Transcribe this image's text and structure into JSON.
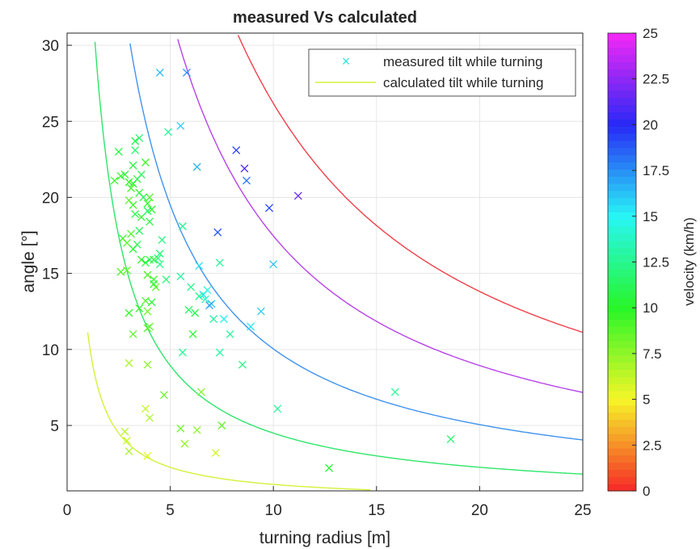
{
  "chart_data": {
    "type": "scatter",
    "title": "measured Vs calculated",
    "xlabel": "turning radius [m]",
    "ylabel": "angle [°]",
    "xlim": [
      0,
      25
    ],
    "ylim": [
      0.7,
      30.8
    ],
    "xticks": [
      "0",
      "5",
      "10",
      "15",
      "20",
      "25"
    ],
    "yticks": [
      "5",
      "10",
      "15",
      "20",
      "25",
      "30"
    ],
    "grid": true,
    "legend": {
      "placement": "top-right",
      "entries": [
        "measured tilt while turning",
        "calculated tilt while turning"
      ]
    },
    "colorbar": {
      "label": "velocity (km/h)",
      "range": [
        0,
        25
      ],
      "ticks": [
        "0",
        "2.5",
        "5",
        "7.5",
        "10",
        "12.5",
        "15",
        "17.5",
        "20",
        "22.5",
        "25"
      ],
      "colormap": "hsv"
    },
    "calculated_curves": [
      {
        "velocity_kmh": 5,
        "color": "#d6f03a",
        "x_range": [
          1.0,
          14.7
        ]
      },
      {
        "velocity_kmh": 10,
        "color": "#2ee66a",
        "x_range": [
          1.35,
          25
        ]
      },
      {
        "velocity_kmh": 15,
        "color": "#3f93ee",
        "x_range": [
          2.85,
          25
        ]
      },
      {
        "velocity_kmh": 20,
        "color": "#b743e8",
        "x_range": [
          5.0,
          25
        ]
      },
      {
        "velocity_kmh": 25,
        "color": "#f0404a",
        "x_range": [
          7.9,
          25
        ]
      }
    ],
    "measured_points": [
      [
        4.5,
        28.2,
        16.5
      ],
      [
        5.8,
        28.2,
        17.5
      ],
      [
        5.5,
        24.7,
        16.0
      ],
      [
        4.9,
        24.3,
        12.8
      ],
      [
        3.5,
        23.9,
        11.8
      ],
      [
        3.3,
        23.7,
        11.0
      ],
      [
        2.5,
        23.0,
        10.5
      ],
      [
        3.3,
        23.1,
        11.6
      ],
      [
        8.2,
        23.1,
        19.5
      ],
      [
        8.6,
        21.9,
        20.8
      ],
      [
        6.3,
        22.0,
        16.5
      ],
      [
        8.7,
        21.1,
        18.2
      ],
      [
        11.2,
        20.1,
        21.5
      ],
      [
        2.3,
        21.1,
        9.5
      ],
      [
        2.6,
        21.4,
        9.8
      ],
      [
        2.8,
        21.5,
        10.2
      ],
      [
        3.0,
        21.0,
        9.6
      ],
      [
        3.1,
        20.6,
        9.2
      ],
      [
        3.2,
        20.9,
        10.0
      ],
      [
        3.4,
        21.2,
        10.8
      ],
      [
        3.6,
        21.5,
        11.2
      ],
      [
        3.2,
        22.1,
        10.6
      ],
      [
        3.8,
        22.3,
        9.5
      ],
      [
        3.0,
        19.8,
        8.8
      ],
      [
        3.2,
        19.5,
        9.4
      ],
      [
        3.5,
        20.3,
        10.4
      ],
      [
        3.7,
        20.0,
        11.0
      ],
      [
        3.9,
        19.6,
        9.9
      ],
      [
        4.0,
        20.0,
        9.2
      ],
      [
        3.3,
        18.9,
        10.8
      ],
      [
        3.6,
        18.7,
        9.8
      ],
      [
        3.9,
        19.1,
        11.4
      ],
      [
        4.1,
        19.2,
        10.0
      ],
      [
        3.5,
        17.8,
        11.2
      ],
      [
        4.0,
        18.4,
        10.6
      ],
      [
        3.1,
        17.6,
        9.0
      ],
      [
        2.7,
        17.3,
        9.6
      ],
      [
        2.9,
        17.0,
        8.8
      ],
      [
        3.2,
        16.6,
        10.2
      ],
      [
        3.4,
        16.9,
        11.0
      ],
      [
        4.6,
        17.2,
        12.2
      ],
      [
        5.6,
        18.1,
        12.6
      ],
      [
        3.6,
        15.9,
        9.8
      ],
      [
        3.8,
        15.7,
        10.6
      ],
      [
        4.0,
        15.9,
        11.2
      ],
      [
        4.2,
        15.9,
        10.4
      ],
      [
        4.4,
        16.0,
        11.6
      ],
      [
        4.5,
        16.3,
        12.0
      ],
      [
        4.5,
        15.6,
        12.4
      ],
      [
        2.6,
        15.1,
        9.2
      ],
      [
        2.9,
        15.2,
        8.6
      ],
      [
        3.9,
        14.9,
        9.2
      ],
      [
        4.2,
        14.6,
        9.5
      ],
      [
        4.2,
        14.3,
        10.2
      ],
      [
        4.3,
        14.1,
        8.8
      ],
      [
        4.8,
        14.6,
        11.8
      ],
      [
        5.5,
        14.8,
        13.0
      ],
      [
        6.0,
        14.1,
        12.4
      ],
      [
        6.4,
        15.5,
        15.5
      ],
      [
        7.4,
        15.7,
        12.8
      ],
      [
        7.3,
        17.7,
        18.8
      ],
      [
        10.0,
        15.6,
        16.2
      ],
      [
        9.8,
        19.3,
        19.2
      ],
      [
        6.6,
        13.6,
        15.8
      ],
      [
        6.8,
        13.9,
        14.5
      ],
      [
        7.0,
        13.0,
        16.2
      ],
      [
        6.7,
        13.3,
        13.5
      ],
      [
        6.4,
        13.5,
        12.5
      ],
      [
        6.9,
        12.9,
        17.0
      ],
      [
        7.6,
        12.0,
        15.2
      ],
      [
        7.1,
        12.0,
        13.0
      ],
      [
        5.9,
        12.6,
        11.6
      ],
      [
        6.2,
        12.4,
        11.0
      ],
      [
        9.4,
        12.5,
        16.0
      ],
      [
        8.9,
        11.5,
        15.5
      ],
      [
        7.9,
        11.0,
        12.8
      ],
      [
        3.0,
        12.4,
        9.6
      ],
      [
        3.5,
        12.7,
        9.8
      ],
      [
        3.8,
        13.2,
        9.0
      ],
      [
        4.1,
        13.1,
        10.4
      ],
      [
        3.2,
        11.0,
        8.6
      ],
      [
        3.9,
        11.4,
        9.0
      ],
      [
        4.0,
        11.5,
        8.8
      ],
      [
        3.9,
        12.5,
        8.4
      ],
      [
        6.1,
        11.0,
        10.2
      ],
      [
        5.6,
        9.8,
        12.6
      ],
      [
        7.4,
        9.8,
        13.0
      ],
      [
        8.5,
        9.0,
        12.4
      ],
      [
        3.0,
        9.1,
        6.8
      ],
      [
        3.9,
        9.0,
        7.6
      ],
      [
        10.2,
        6.1,
        12.8
      ],
      [
        15.9,
        7.2,
        12.6
      ],
      [
        18.6,
        4.1,
        11.8
      ],
      [
        12.7,
        2.2,
        10.2
      ],
      [
        4.7,
        7.0,
        8.4
      ],
      [
        6.5,
        7.2,
        7.8
      ],
      [
        3.8,
        6.1,
        6.2
      ],
      [
        4.0,
        5.5,
        6.8
      ],
      [
        5.5,
        4.8,
        8.2
      ],
      [
        6.3,
        4.7,
        7.6
      ],
      [
        7.5,
        5.0,
        8.6
      ],
      [
        2.8,
        4.6,
        6.6
      ],
      [
        2.9,
        4.0,
        6.2
      ],
      [
        3.0,
        3.3,
        6.8
      ],
      [
        3.9,
        3.0,
        5.6
      ],
      [
        5.7,
        3.8,
        7.4
      ],
      [
        7.2,
        3.2,
        6.0
      ]
    ]
  }
}
